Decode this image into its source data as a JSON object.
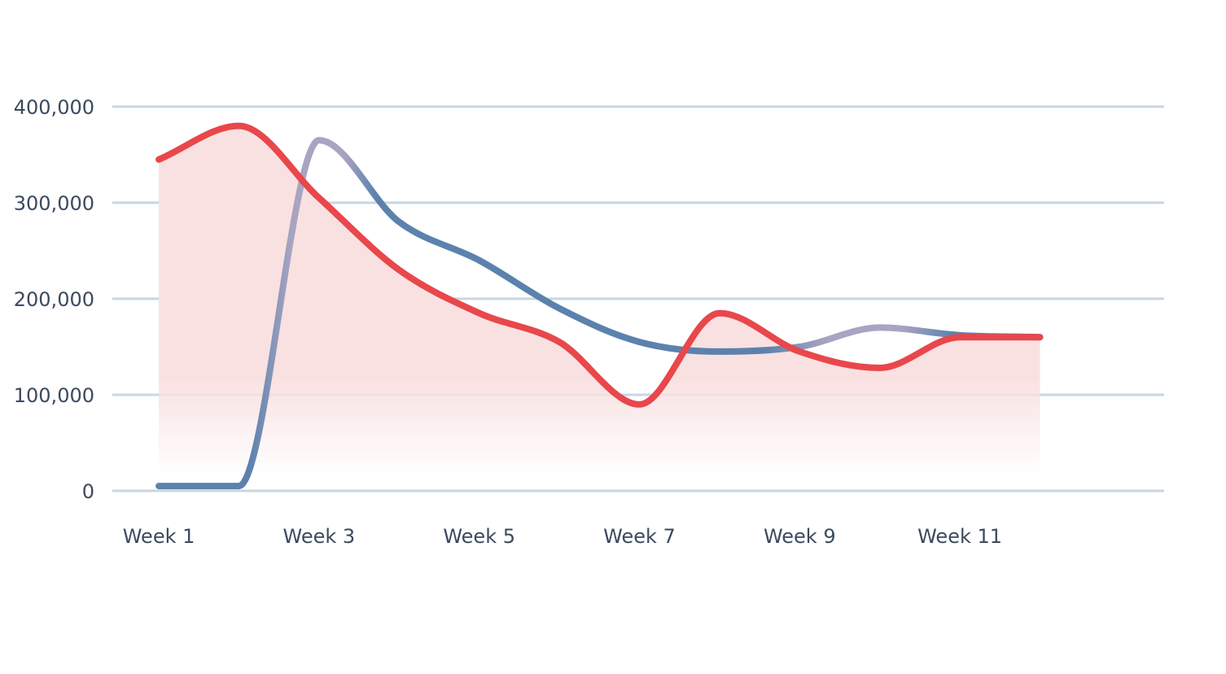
{
  "chart_data": {
    "type": "line",
    "title": "",
    "xlabel": "",
    "ylabel": "",
    "x": [
      1,
      2,
      3,
      4,
      5,
      6,
      7,
      8,
      9,
      10,
      11,
      12
    ],
    "x_tick_labels": [
      {
        "x": 1,
        "label": "Week 1"
      },
      {
        "x": 3,
        "label": "Week 3"
      },
      {
        "x": 5,
        "label": "Week 5"
      },
      {
        "x": 7,
        "label": "Week 7"
      },
      {
        "x": 9,
        "label": "Week 9"
      },
      {
        "x": 11,
        "label": "Week 11"
      }
    ],
    "y_ticks": [
      {
        "value": 0,
        "label": "0"
      },
      {
        "value": 100000,
        "label": "100,000"
      },
      {
        "value": 200000,
        "label": "200,000"
      },
      {
        "value": 300000,
        "label": "300,000"
      },
      {
        "value": 400000,
        "label": "400,000"
      }
    ],
    "xlim": [
      0.42,
      13.55
    ],
    "ylim": [
      0,
      400000
    ],
    "grid": "horizontal",
    "legend": "none",
    "series": [
      {
        "values": [
          5000,
          5000,
          365000,
          280000,
          240000,
          190000,
          155000,
          145000,
          150000,
          170000,
          162000,
          160000
        ],
        "color": "#5b82ad",
        "transition_color": "#a8a4c2",
        "style": "line"
      },
      {
        "values": [
          345000,
          380000,
          305000,
          230000,
          185000,
          155000,
          90000,
          185000,
          145000,
          128000,
          160000,
          160000
        ],
        "color": "#e8474c",
        "fill_color": "#f9e1e1",
        "style": "area"
      }
    ]
  }
}
